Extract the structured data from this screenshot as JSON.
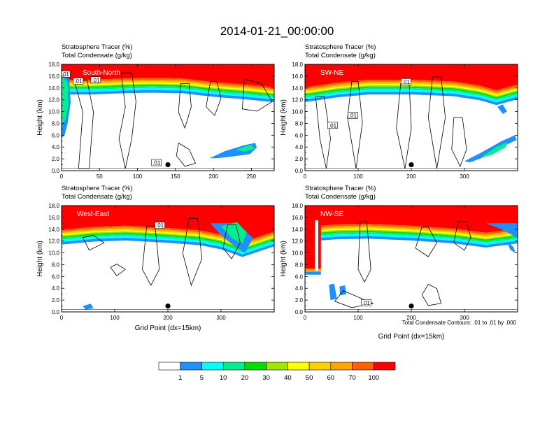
{
  "figure": {
    "title": "2014-01-21_00:00:00",
    "footnote": "Total Condensate Contours: .01 to .01 by .000"
  },
  "colors": {
    "levels": [
      "#ffffff",
      "#1e90ff",
      "#00ffff",
      "#00ee90",
      "#00e000",
      "#a0e600",
      "#ffff00",
      "#ffd000",
      "#ffa500",
      "#ff6000",
      "#ff0000"
    ],
    "contour": "#000000"
  },
  "colorbar": {
    "labels": [
      "1",
      "5",
      "10",
      "20",
      "30",
      "40",
      "50",
      "60",
      "70",
      "100"
    ]
  },
  "chart_data": [
    {
      "type": "filled-contour",
      "name": "South-North",
      "label_line1": "Stratosphere Tracer   (%)",
      "label_line2": "Total Condensate   (g/kg)",
      "ylabel": "Height (km)",
      "xlabel": "",
      "xlim": [
        0,
        280
      ],
      "ylim": [
        0,
        18
      ],
      "xticks": [
        "0",
        "50",
        "100",
        "150",
        "200",
        "250"
      ],
      "xtick_values": [
        0,
        50,
        100,
        150,
        200,
        250
      ],
      "yticks": [
        "0.0",
        "2.0",
        "4.0",
        "6.0",
        "8.0",
        "10.0",
        "12.0",
        "14.0",
        "16.0",
        "18.0"
      ],
      "ytick_values": [
        0,
        2,
        4,
        6,
        8,
        10,
        12,
        14,
        16,
        18
      ],
      "marker": [
        140,
        1.0
      ],
      "contour_labels": [
        {
          "text": ".01",
          "x": 5,
          "y": 16.3
        },
        {
          "text": ".01",
          "x": 22,
          "y": 15.1
        },
        {
          "text": ".01",
          "x": 45,
          "y": 15.3
        },
        {
          "text": ".01",
          "x": 125,
          "y": 1.3
        }
      ],
      "tracer_top": [
        [
          0,
          16.8
        ],
        [
          40,
          16.8
        ],
        [
          80,
          17.0
        ],
        [
          120,
          17.1
        ],
        [
          160,
          17.0
        ],
        [
          200,
          16.4
        ],
        [
          240,
          16.0
        ],
        [
          280,
          15.5
        ]
      ],
      "extra_patches": [
        {
          "level": 1,
          "points": [
            [
              195,
              2.1
            ],
            [
              215,
              3.3
            ],
            [
              240,
              4.3
            ],
            [
              255,
              4.7
            ],
            [
              257,
              3.9
            ],
            [
              248,
              2.8
            ],
            [
              225,
              2.4
            ],
            [
              205,
              2.1
            ]
          ]
        },
        {
          "level": 3,
          "points": [
            [
              230,
              3.6
            ],
            [
              250,
              4.4
            ],
            [
              254,
              3.7
            ],
            [
              240,
              3.2
            ]
          ]
        },
        {
          "level": 1,
          "points": [
            [
              0,
              16.5
            ],
            [
              10,
              15.5
            ],
            [
              12,
              11.5
            ],
            [
              8,
              8.0
            ],
            [
              4,
              6.0
            ],
            [
              0,
              5.5
            ]
          ]
        },
        {
          "level": 3,
          "points": [
            [
              0,
              16.0
            ],
            [
              8,
              15.0
            ],
            [
              9,
              11.0
            ],
            [
              5,
              8.5
            ],
            [
              0,
              8.0
            ]
          ]
        }
      ]
    },
    {
      "type": "filled-contour",
      "name": "SW-NE",
      "label_line1": "Stratosphere Tracer   (%)",
      "label_line2": "Total Condensate   (g/kg)",
      "ylabel": "Height (km)",
      "xlabel": "",
      "xlim": [
        0,
        400
      ],
      "ylim": [
        0,
        18
      ],
      "xticks": [
        "0",
        "100",
        "200",
        "300"
      ],
      "xtick_values": [
        0,
        100,
        200,
        300
      ],
      "yticks": [
        "0.0",
        "2.0",
        "4.0",
        "6.0",
        "8.0",
        "10.0",
        "12.0",
        "14.0",
        "16.0",
        "18.0"
      ],
      "ytick_values": [
        0,
        2,
        4,
        6,
        8,
        10,
        12,
        14,
        16,
        18
      ],
      "marker": [
        200,
        1.0
      ],
      "contour_labels": [
        {
          "text": ".01",
          "x": 190,
          "y": 15.0
        },
        {
          "text": ".01",
          "x": 90,
          "y": 9.3
        },
        {
          "text": ".01",
          "x": 52,
          "y": 7.6
        }
      ],
      "tracer_top": [
        [
          0,
          15.5
        ],
        [
          60,
          16.3
        ],
        [
          120,
          16.8
        ],
        [
          200,
          16.8
        ],
        [
          280,
          16.5
        ],
        [
          330,
          15.8
        ],
        [
          360,
          15.0
        ],
        [
          400,
          16.0
        ]
      ],
      "extra_patches": [
        {
          "level": 1,
          "points": [
            [
              300,
              1.6
            ],
            [
              330,
              3.0
            ],
            [
              370,
              5.0
            ],
            [
              395,
              6.0
            ],
            [
              398,
              5.2
            ],
            [
              370,
              4.0
            ],
            [
              340,
              2.4
            ],
            [
              310,
              1.4
            ]
          ]
        },
        {
          "level": 3,
          "points": [
            [
              330,
              2.2
            ],
            [
              360,
              4.0
            ],
            [
              380,
              4.8
            ],
            [
              378,
              4.0
            ],
            [
              350,
              2.6
            ]
          ]
        },
        {
          "level": 1,
          "points": [
            [
              362,
              10.8
            ],
            [
              372,
              9.6
            ],
            [
              380,
              10.0
            ],
            [
              372,
              11.2
            ]
          ]
        }
      ]
    },
    {
      "type": "filled-contour",
      "name": "West-East",
      "label_line1": "Stratosphere Tracer   (%)",
      "label_line2": "Total Condensate   (g/kg)",
      "ylabel": "Height (km)",
      "xlabel": "Grid Point (dx=15km)",
      "xlim": [
        0,
        400
      ],
      "ylim": [
        0,
        18
      ],
      "xticks": [
        "0",
        "100",
        "200",
        "300"
      ],
      "xtick_values": [
        0,
        100,
        200,
        300
      ],
      "yticks": [
        "0.0",
        "2.0",
        "4.0",
        "6.0",
        "8.0",
        "10.0",
        "12.0",
        "14.0",
        "16.0",
        "18.0"
      ],
      "ytick_values": [
        0,
        2,
        4,
        6,
        8,
        10,
        12,
        14,
        16,
        18
      ],
      "marker": [
        200,
        1.0
      ],
      "contour_labels": [
        {
          "text": ".01",
          "x": 185,
          "y": 14.6
        }
      ],
      "tracer_top": [
        [
          0,
          15.3
        ],
        [
          60,
          15.8
        ],
        [
          120,
          16.0
        ],
        [
          200,
          15.6
        ],
        [
          260,
          15.2
        ],
        [
          300,
          14.5
        ],
        [
          340,
          13.2
        ],
        [
          400,
          15.0
        ]
      ],
      "extra_patches": [
        {
          "level": 1,
          "points": [
            [
              280,
              15.0
            ],
            [
              300,
              13.0
            ],
            [
              320,
              11.5
            ],
            [
              345,
              10.0
            ],
            [
              360,
              12.5
            ],
            [
              330,
              15.0
            ]
          ]
        },
        {
          "level": 3,
          "points": [
            [
              300,
              14.5
            ],
            [
              320,
              12.5
            ],
            [
              340,
              11.5
            ],
            [
              348,
              13.5
            ],
            [
              330,
              15.2
            ]
          ]
        },
        {
          "level": 1,
          "points": [
            [
              40,
              1.0
            ],
            [
              55,
              1.4
            ],
            [
              60,
              0.6
            ],
            [
              45,
              0.4
            ]
          ]
        }
      ]
    },
    {
      "type": "filled-contour",
      "name": "NW-SE",
      "label_line1": "Stratosphere Tracer   (%)",
      "label_line2": "Total Condensate   (g/kg)",
      "ylabel": "Height (km)",
      "xlabel": "Grid Point (dx=15km)",
      "xlim": [
        0,
        400
      ],
      "ylim": [
        0,
        18
      ],
      "xticks": [
        "0",
        "100",
        "200",
        "300"
      ],
      "xtick_values": [
        0,
        100,
        200,
        300
      ],
      "yticks": [
        "0.0",
        "2.0",
        "4.0",
        "6.0",
        "8.0",
        "10.0",
        "12.0",
        "14.0",
        "16.0",
        "18.0"
      ],
      "ytick_values": [
        0,
        2,
        4,
        6,
        8,
        10,
        12,
        14,
        16,
        18
      ],
      "marker": [
        200,
        1.0
      ],
      "contour_labels": [
        {
          "text": ".01",
          "x": 115,
          "y": 1.5
        }
      ],
      "tracer_top": [
        [
          0,
          15.8
        ],
        [
          60,
          16.2
        ],
        [
          120,
          16.3
        ],
        [
          200,
          16.0
        ],
        [
          280,
          15.5
        ],
        [
          340,
          14.8
        ],
        [
          400,
          15.5
        ]
      ],
      "extra_patches": [
        {
          "level": 10,
          "points": [
            [
              0,
              16.0
            ],
            [
              30,
              16.0
            ],
            [
              30,
              7.3
            ],
            [
              0,
              7.3
            ]
          ]
        },
        {
          "level": 8,
          "points": [
            [
              0,
              7.3
            ],
            [
              30,
              7.3
            ],
            [
              30,
              6.8
            ],
            [
              0,
              6.8
            ]
          ]
        },
        {
          "level": 1,
          "points": [
            [
              0,
              6.8
            ],
            [
              30,
              6.8
            ],
            [
              30,
              6.3
            ],
            [
              0,
              6.3
            ]
          ]
        },
        {
          "level": 0,
          "points": [
            [
              19,
              15.5
            ],
            [
              25,
              15.5
            ],
            [
              25,
              7.0
            ],
            [
              19,
              7.0
            ]
          ]
        },
        {
          "level": 1,
          "points": [
            [
              45,
              4.6
            ],
            [
              55,
              4.8
            ],
            [
              60,
              2.2
            ],
            [
              48,
              2.0
            ]
          ]
        },
        {
          "level": 1,
          "points": [
            [
              65,
              4.3
            ],
            [
              75,
              4.5
            ],
            [
              78,
              3.0
            ],
            [
              66,
              2.8
            ]
          ]
        },
        {
          "level": 1,
          "points": [
            [
              340,
              15.0
            ],
            [
              370,
              14.0
            ],
            [
              400,
              12.5
            ],
            [
              400,
              15.0
            ]
          ]
        },
        {
          "level": 1,
          "points": [
            [
              380,
              12.0
            ],
            [
              392,
              11.0
            ],
            [
              396,
              10.0
            ],
            [
              386,
              10.5
            ]
          ]
        }
      ]
    }
  ]
}
